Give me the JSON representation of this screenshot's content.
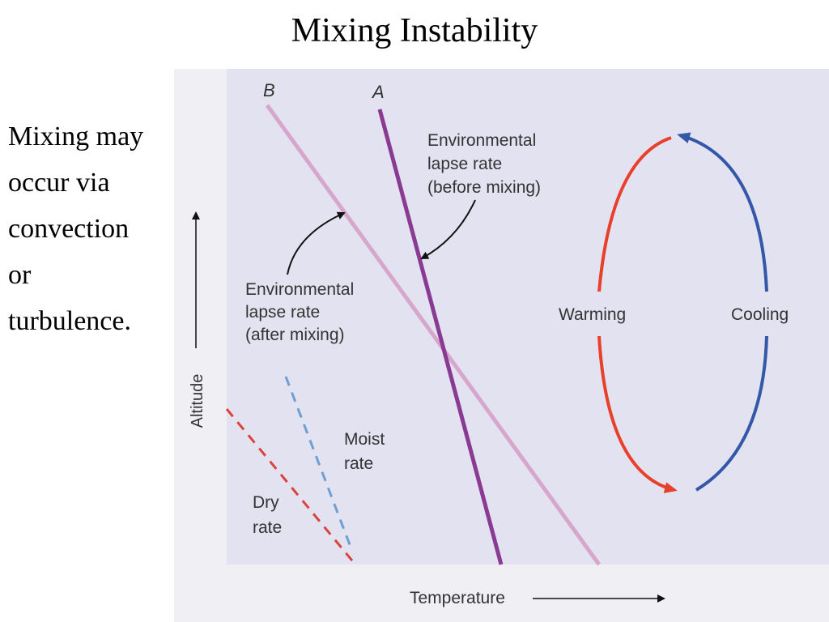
{
  "slide": {
    "title": "Mixing Instability",
    "body_lines": [
      "Mixing may",
      "occur via",
      "convection",
      "or",
      "turbulence."
    ]
  },
  "figure": {
    "line_b_label": "B",
    "line_a_label": "A",
    "env_before": [
      "Environmental",
      "lapse rate",
      "(before mixing)"
    ],
    "env_after": [
      "Environmental",
      "lapse rate",
      "(after mixing)"
    ],
    "moist": [
      "Moist",
      "rate"
    ],
    "dry": [
      "Dry",
      "rate"
    ],
    "warming_label": "Warming",
    "cooling_label": "Cooling",
    "y_axis_label": "Altitude",
    "x_axis_label": "Temperature",
    "colors": {
      "panel_bg": "#e2e2f1",
      "line_a": "#8a3a92",
      "line_b": "#d7a6cc",
      "warming": "#e8402a",
      "cooling": "#3457a8",
      "moist": "#6f9fd2",
      "dry": "#d9433b"
    }
  }
}
